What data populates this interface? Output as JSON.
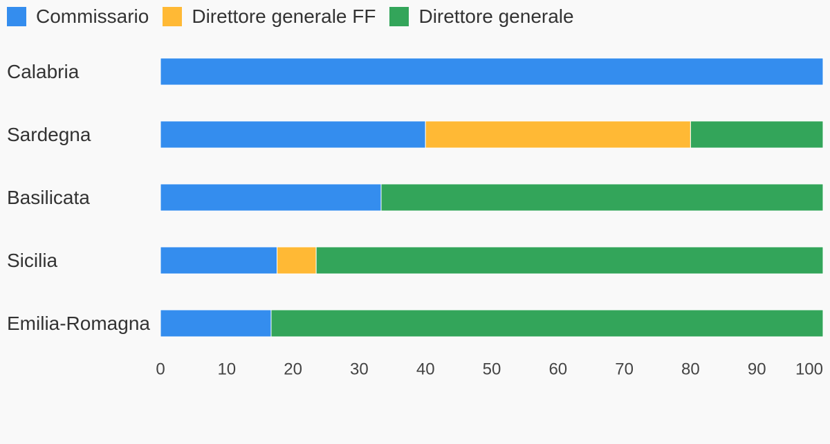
{
  "chart_data": {
    "type": "bar",
    "orientation": "horizontal",
    "stacked": true,
    "categories": [
      "Calabria",
      "Sardegna",
      "Basilicata",
      "Sicilia",
      "Emilia-Romagna"
    ],
    "series": [
      {
        "name": "Commissario",
        "color": "#348dee",
        "values": [
          100,
          40,
          33.3,
          17.6,
          16.7
        ]
      },
      {
        "name": "Direttore generale FF",
        "color": "#ffb935",
        "values": [
          0,
          40,
          0,
          5.9,
          0
        ]
      },
      {
        "name": "Direttore generale",
        "color": "#33a55a",
        "values": [
          0,
          20,
          66.7,
          76.5,
          83.3
        ]
      }
    ],
    "xlim": [
      0,
      100
    ],
    "xticks": [
      "0",
      "10",
      "20",
      "30",
      "40",
      "50",
      "60",
      "70",
      "80",
      "90",
      "100"
    ],
    "legend_position": "top-left",
    "grid": false
  }
}
